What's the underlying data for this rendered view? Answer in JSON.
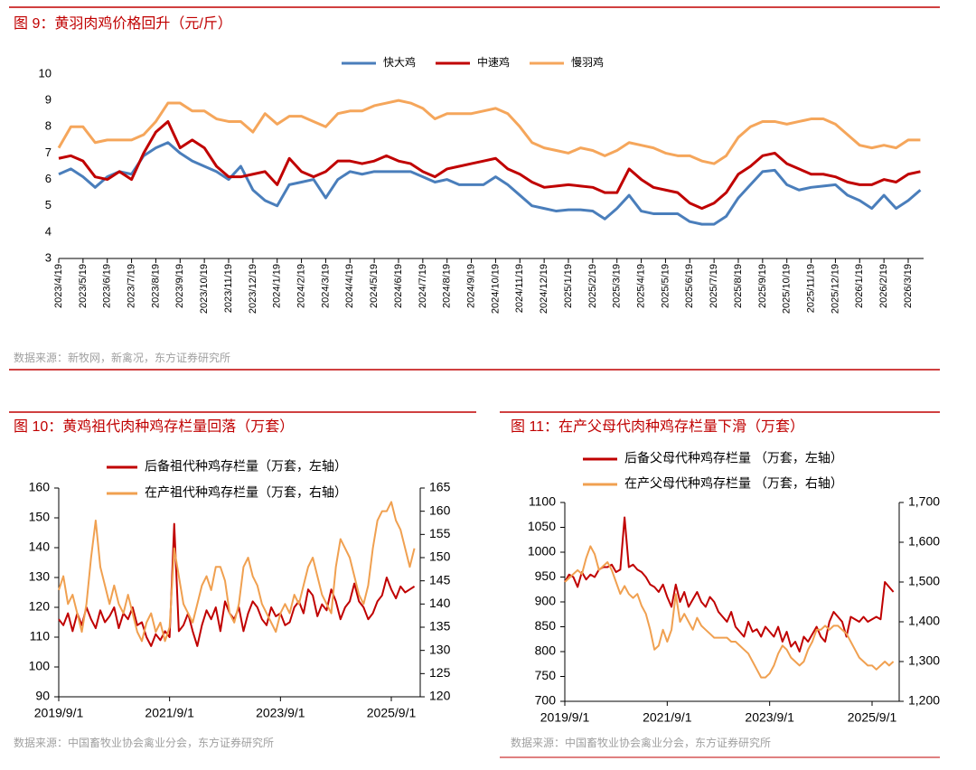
{
  "chart_data": [
    {
      "type": "line",
      "title": "图 9：黄羽肉鸡价格回升（元/斤）",
      "source": "数据来源：新牧网，新禽况，东方证券研究所",
      "categories": [
        "2023/4/19",
        null,
        "2023/5/19",
        null,
        "2023/6/19",
        null,
        "2023/7/19",
        null,
        "2023/8/19",
        null,
        "2023/9/19",
        null,
        "2023/10/19",
        null,
        "2023/11/19",
        null,
        "2023/12/19",
        null,
        "2024/1/19",
        null,
        "2024/2/19",
        null,
        "2024/3/19",
        null,
        "2024/4/19",
        null,
        "2024/5/19",
        null,
        "2024/6/19",
        null,
        "2024/7/19",
        null,
        "2024/8/19",
        null,
        "2024/9/19",
        null,
        "2024/10/19",
        null,
        "2024/11/19",
        null,
        "2024/12/19",
        null,
        "2025/1/19",
        null,
        "2025/2/19",
        null,
        "2025/3/19",
        null,
        "2025/4/19",
        null,
        "2025/5/19",
        null,
        "2025/6/19",
        null,
        "2025/7/19",
        null,
        "2025/8/19",
        null,
        "2025/9/19",
        null,
        "2025/10/19",
        null,
        "2025/11/19",
        null,
        "2025/12/19",
        null,
        "2026/1/19",
        null,
        "2026/2/19",
        null,
        "2026/3/19",
        null
      ],
      "ylim": [
        3,
        10
      ],
      "yticks": [
        3,
        4,
        5,
        6,
        7,
        8,
        9,
        10
      ],
      "series": [
        {
          "name": "快大鸡",
          "color": "#4a7ebb",
          "values": [
            6.2,
            6.4,
            6.1,
            5.7,
            6.1,
            6.3,
            6.2,
            6.9,
            7.2,
            7.4,
            7.0,
            6.7,
            6.5,
            6.3,
            6.0,
            6.5,
            5.6,
            5.2,
            5.0,
            5.8,
            5.9,
            6.0,
            5.3,
            6.0,
            6.3,
            6.2,
            6.3,
            6.3,
            6.3,
            6.3,
            6.1,
            5.9,
            6.0,
            5.8,
            5.8,
            5.8,
            6.1,
            5.8,
            5.4,
            5.0,
            4.9,
            4.8,
            4.85,
            4.85,
            4.8,
            4.5,
            4.9,
            5.4,
            4.8,
            4.7,
            4.7,
            4.7,
            4.4,
            4.3,
            4.3,
            4.6,
            5.3,
            5.8,
            6.3,
            6.35,
            5.8,
            5.6,
            5.7,
            5.75,
            5.8,
            5.4,
            5.2,
            4.9,
            5.4,
            4.9,
            5.2,
            5.6
          ]
        },
        {
          "name": "中速鸡",
          "color": "#c00000",
          "values": [
            6.8,
            6.9,
            6.7,
            6.1,
            6.0,
            6.3,
            6.0,
            7.0,
            7.8,
            8.2,
            7.2,
            7.5,
            7.2,
            6.5,
            6.1,
            6.1,
            6.2,
            6.3,
            5.8,
            6.8,
            6.3,
            6.1,
            6.3,
            6.7,
            6.7,
            6.6,
            6.7,
            6.9,
            6.7,
            6.6,
            6.3,
            6.1,
            6.4,
            6.5,
            6.6,
            6.7,
            6.8,
            6.4,
            6.2,
            5.9,
            5.7,
            5.75,
            5.8,
            5.75,
            5.7,
            5.5,
            5.5,
            6.4,
            6.0,
            5.7,
            5.6,
            5.5,
            5.1,
            4.9,
            5.1,
            5.5,
            6.2,
            6.5,
            6.9,
            7.0,
            6.6,
            6.4,
            6.2,
            6.2,
            6.1,
            5.9,
            5.8,
            5.8,
            6.0,
            5.9,
            6.2,
            6.3
          ]
        },
        {
          "name": "慢羽鸡",
          "color": "#f5a65b",
          "values": [
            7.2,
            8.0,
            8.0,
            7.4,
            7.5,
            7.5,
            7.5,
            7.7,
            8.2,
            8.9,
            8.9,
            8.6,
            8.6,
            8.3,
            8.2,
            8.2,
            7.8,
            8.5,
            8.1,
            8.4,
            8.4,
            8.2,
            8.0,
            8.5,
            8.6,
            8.6,
            8.8,
            8.9,
            9.0,
            8.9,
            8.7,
            8.3,
            8.5,
            8.5,
            8.5,
            8.6,
            8.7,
            8.5,
            8.0,
            7.4,
            7.2,
            7.1,
            7.0,
            7.2,
            7.1,
            6.9,
            7.1,
            7.4,
            7.3,
            7.2,
            7.0,
            6.9,
            6.9,
            6.7,
            6.6,
            6.9,
            7.6,
            8.0,
            8.2,
            8.2,
            8.1,
            8.2,
            8.3,
            8.3,
            8.1,
            7.7,
            7.3,
            7.2,
            7.3,
            7.2,
            7.5,
            7.5
          ]
        }
      ]
    },
    {
      "type": "line",
      "title": "图 10：黄鸡祖代肉种鸡存栏量回落（万套）",
      "source": "数据来源：中国畜牧业协会禽业分会，东方证券研究所",
      "categories": [
        "2019/9/1",
        null,
        null,
        null,
        null,
        null,
        null,
        null,
        null,
        null,
        null,
        null,
        null,
        null,
        null,
        null,
        null,
        null,
        null,
        null,
        null,
        null,
        null,
        null,
        "2021/9/1",
        null,
        null,
        null,
        null,
        null,
        null,
        null,
        null,
        null,
        null,
        null,
        null,
        null,
        null,
        null,
        null,
        null,
        null,
        null,
        null,
        null,
        null,
        null,
        "2023/9/1",
        null,
        null,
        null,
        null,
        null,
        null,
        null,
        null,
        null,
        null,
        null,
        null,
        null,
        null,
        null,
        null,
        null,
        null,
        null,
        null,
        null,
        null,
        null,
        "2025/9/1",
        null,
        null,
        null,
        null,
        null
      ],
      "ylim": [
        90,
        160
      ],
      "yticks": [
        90,
        100,
        110,
        120,
        130,
        140,
        150,
        160
      ],
      "y2lim": [
        120,
        165
      ],
      "y2ticks": [
        120,
        125,
        130,
        135,
        140,
        145,
        150,
        155,
        160,
        165
      ],
      "series": [
        {
          "name": "后备祖代种鸡存栏量（万套，左轴）",
          "color": "#c00000",
          "values": [
            116,
            114,
            118,
            112,
            118,
            114,
            120,
            116,
            113,
            119,
            115,
            117,
            120,
            113,
            118,
            116,
            120,
            114,
            115,
            110,
            107,
            111,
            109,
            112,
            110,
            148,
            112,
            114,
            118,
            112,
            107,
            114,
            119,
            116,
            120,
            112,
            122,
            118,
            116,
            120,
            112,
            118,
            122,
            120,
            116,
            114,
            120,
            117,
            118,
            114,
            115,
            120,
            122,
            118,
            126,
            124,
            117,
            121,
            119,
            126,
            122,
            116,
            120,
            122,
            128,
            122,
            120,
            116,
            118,
            122,
            124,
            130,
            126,
            123,
            127,
            125,
            126,
            127
          ]
        },
        {
          "name": "在产祖代种鸡存栏量（万套，右轴）",
          "color": "#f0a050",
          "axis": "y2",
          "values": [
            143,
            146,
            140,
            142,
            138,
            134,
            140,
            150,
            158,
            148,
            144,
            140,
            144,
            140,
            138,
            142,
            138,
            134,
            132,
            136,
            138,
            134,
            136,
            132,
            135,
            152,
            146,
            140,
            138,
            136,
            140,
            144,
            146,
            143,
            148,
            148,
            145,
            138,
            136,
            140,
            148,
            150,
            146,
            144,
            140,
            138,
            136,
            134,
            138,
            140,
            138,
            142,
            140,
            144,
            148,
            150,
            146,
            142,
            140,
            138,
            148,
            154,
            152,
            150,
            146,
            142,
            140,
            144,
            152,
            158,
            160,
            160,
            162,
            158,
            156,
            152,
            148,
            152
          ]
        }
      ]
    },
    {
      "type": "line",
      "title": "图 11：在产父母代肉种鸡存栏量下滑（万套）",
      "source": "数据来源：中国畜牧业协会禽业分会，东方证券研究所",
      "categories": [
        "2019/9/1",
        null,
        null,
        null,
        null,
        null,
        null,
        null,
        null,
        null,
        null,
        null,
        null,
        null,
        null,
        null,
        null,
        null,
        null,
        null,
        null,
        null,
        null,
        null,
        "2021/9/1",
        null,
        null,
        null,
        null,
        null,
        null,
        null,
        null,
        null,
        null,
        null,
        null,
        null,
        null,
        null,
        null,
        null,
        null,
        null,
        null,
        null,
        null,
        null,
        "2023/9/1",
        null,
        null,
        null,
        null,
        null,
        null,
        null,
        null,
        null,
        null,
        null,
        null,
        null,
        null,
        null,
        null,
        null,
        null,
        null,
        null,
        null,
        null,
        null,
        "2025/9/1",
        null,
        null,
        null,
        null,
        null
      ],
      "ylim": [
        700,
        1100
      ],
      "yticks": [
        700,
        750,
        800,
        850,
        900,
        950,
        1000,
        1050,
        1100
      ],
      "y2lim": [
        1200,
        1700
      ],
      "y2ticks": [
        {
          "value": 1200,
          "label": "1,200"
        },
        {
          "value": 1300,
          "label": "1,300"
        },
        {
          "value": 1400,
          "label": "1,400"
        },
        {
          "value": 1500,
          "label": "1,500"
        },
        {
          "value": 1600,
          "label": "1,600"
        },
        {
          "value": 1700,
          "label": "1,700"
        }
      ],
      "series": [
        {
          "name": "后备父母代种鸡存栏量  （万套，左轴）",
          "color": "#c00000",
          "values": [
            940,
            955,
            950,
            930,
            960,
            945,
            955,
            950,
            965,
            970,
            970,
            975,
            960,
            965,
            1070,
            970,
            975,
            965,
            960,
            950,
            935,
            930,
            920,
            935,
            910,
            890,
            935,
            900,
            920,
            890,
            905,
            920,
            900,
            890,
            910,
            900,
            880,
            870,
            860,
            880,
            850,
            840,
            830,
            860,
            840,
            845,
            830,
            850,
            840,
            830,
            850,
            820,
            840,
            810,
            820,
            800,
            830,
            820,
            835,
            850,
            830,
            820,
            860,
            880,
            870,
            860,
            830,
            870,
            865,
            860,
            870,
            860,
            865,
            870,
            865,
            940,
            930,
            920
          ]
        },
        {
          "name": "在产父母代种鸡存栏量  （万套，右轴）",
          "color": "#f0a050",
          "axis": "y2",
          "values": [
            1500,
            1510,
            1520,
            1530,
            1520,
            1560,
            1590,
            1570,
            1530,
            1540,
            1550,
            1530,
            1500,
            1470,
            1490,
            1470,
            1460,
            1470,
            1440,
            1420,
            1380,
            1330,
            1340,
            1380,
            1350,
            1380,
            1470,
            1400,
            1420,
            1400,
            1380,
            1410,
            1390,
            1380,
            1370,
            1360,
            1360,
            1360,
            1360,
            1350,
            1350,
            1340,
            1330,
            1320,
            1300,
            1280,
            1260,
            1260,
            1270,
            1290,
            1320,
            1340,
            1330,
            1310,
            1300,
            1290,
            1300,
            1330,
            1350,
            1380,
            1380,
            1390,
            1380,
            1390,
            1390,
            1380,
            1370,
            1350,
            1330,
            1310,
            1300,
            1290,
            1290,
            1280,
            1290,
            1300,
            1290,
            1300
          ]
        }
      ]
    }
  ]
}
